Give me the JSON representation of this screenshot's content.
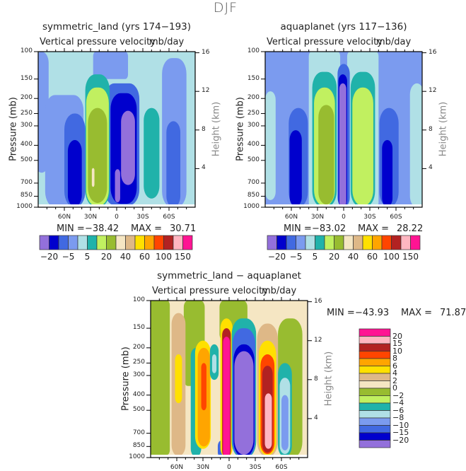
{
  "title": "DJF",
  "chart_data": [
    {
      "type": "heatmap",
      "name": "symmetric_land",
      "title": "symmetric_land (yrs 174−193)",
      "subtitle_left": "Vertical pressure velocity",
      "subtitle_right": "mb/day",
      "xlabel": "",
      "ylabel": "Pressure (mb)",
      "ylabel_right": "Height (km)",
      "x_ticks": [
        "60N",
        "30N",
        "0",
        "30S",
        "60S"
      ],
      "y_ticks": [
        "100",
        "150",
        "200",
        "250",
        "300",
        "400",
        "500",
        "700",
        "850",
        "1000"
      ],
      "y_right_ticks": [
        "16",
        "12",
        "8",
        "4"
      ],
      "ylim": [
        1000,
        100
      ],
      "min_label": "MIN =",
      "min_value": "−38.42",
      "max_label": "MAX =",
      "max_value": "30.71",
      "colorbar": {
        "orientation": "horizontal",
        "colors": [
          "#9370DB",
          "#0000CD",
          "#4169E1",
          "#7B9BEF",
          "#B0E0E6",
          "#20B2AA",
          "#C1F060",
          "#98BC30",
          "#F5E6C3",
          "#DEB887",
          "#FFE000",
          "#FFA500",
          "#FF4500",
          "#B22222",
          "#FFB6C1",
          "#FF1493"
        ],
        "labels": [
          "−20",
          "−5",
          "5",
          "20",
          "40",
          "60",
          "100",
          "150"
        ]
      },
      "features": [
        {
          "desc": "ascent core (negative, purple) near equator-south",
          "lat": -8,
          "pmin": 250,
          "pmax": 850,
          "level": -20
        },
        {
          "desc": "descent maximum (green) ~20N",
          "lat": 20,
          "pmin": 200,
          "pmax": 925,
          "level": 20
        }
      ]
    },
    {
      "type": "heatmap",
      "name": "aquaplanet",
      "title": "aquaplanet (yrs 117−136)",
      "subtitle_left": "Vertical pressure velocity",
      "subtitle_right": "mb/day",
      "ylabel": "Pressure (mb)",
      "ylabel_right": "Height (km)",
      "x_ticks": [
        "60N",
        "30N",
        "0",
        "30S",
        "60S"
      ],
      "y_ticks": [
        "100",
        "150",
        "200",
        "250",
        "300",
        "400",
        "500",
        "700",
        "850",
        "1000"
      ],
      "y_right_ticks": [
        "16",
        "12",
        "8",
        "4"
      ],
      "ylim": [
        1000,
        100
      ],
      "min_label": "MIN =",
      "min_value": "−83.02",
      "max_label": "MAX =",
      "max_value": "28.22",
      "colorbar": {
        "orientation": "horizontal",
        "colors": [
          "#9370DB",
          "#0000CD",
          "#4169E1",
          "#7B9BEF",
          "#B0E0E6",
          "#20B2AA",
          "#C1F060",
          "#98BC30",
          "#F5E6C3",
          "#DEB887",
          "#FFE000",
          "#FFA500",
          "#FF4500",
          "#B22222",
          "#FFB6C1",
          "#FF1493"
        ],
        "labels": [
          "−20",
          "−5",
          "5",
          "20",
          "40",
          "60",
          "100",
          "150"
        ]
      }
    },
    {
      "type": "heatmap",
      "name": "difference",
      "title": "symmetric_land − aquaplanet",
      "subtitle_left": "Vertical pressure velocity",
      "subtitle_right": "mb/day",
      "ylabel": "Pressure (mb)",
      "ylabel_right": "Height (km)",
      "x_ticks": [
        "60N",
        "30N",
        "0",
        "30S",
        "60S"
      ],
      "y_ticks": [
        "100",
        "150",
        "200",
        "250",
        "300",
        "400",
        "500",
        "700",
        "850",
        "1000"
      ],
      "y_right_ticks": [
        "16",
        "12",
        "8",
        "4"
      ],
      "ylim": [
        1000,
        100
      ],
      "min_label": "MIN =",
      "min_value": "−43.93",
      "max_label": "MAX =",
      "max_value": "71.87",
      "colorbar": {
        "orientation": "vertical",
        "colors": [
          "#FF1493",
          "#FFB6C1",
          "#B22222",
          "#FF4500",
          "#FFA500",
          "#FFE000",
          "#DEB887",
          "#F5E6C3",
          "#98BC30",
          "#C1F060",
          "#20B2AA",
          "#B0E0E6",
          "#7B9BEF",
          "#4169E1",
          "#0000CD",
          "#9370DB"
        ],
        "labels": [
          "20",
          "15",
          "10",
          "8",
          "6",
          "4",
          "2",
          "0",
          "−2",
          "−4",
          "−6",
          "−8",
          "−10",
          "−15",
          "−20"
        ]
      }
    }
  ]
}
